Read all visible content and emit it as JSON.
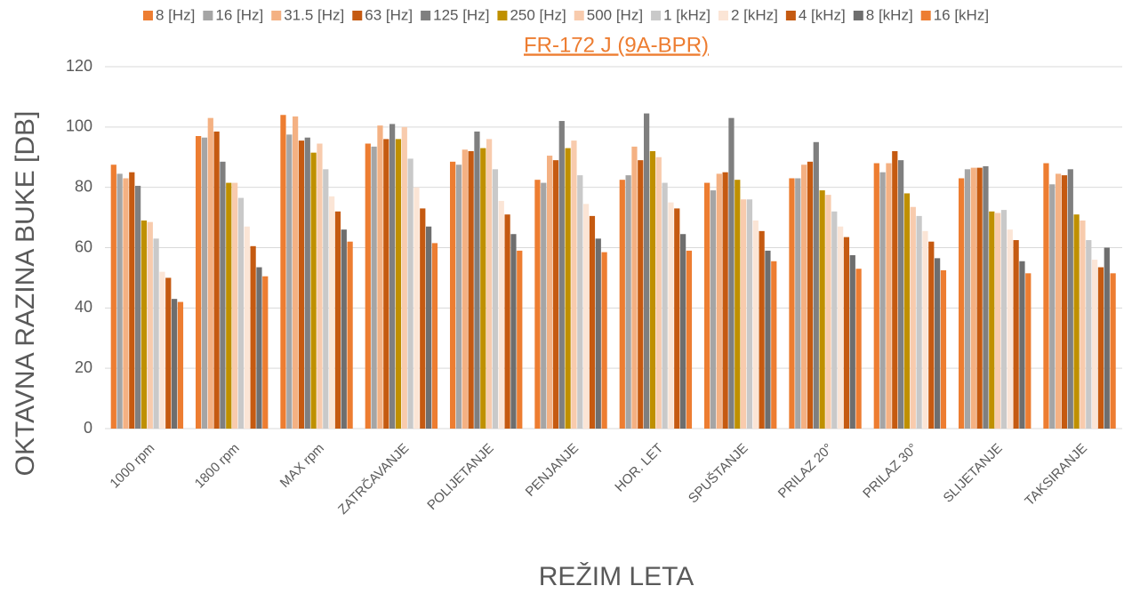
{
  "chart_data": {
    "type": "bar",
    "title": "FR-172 J (9A-BPR)",
    "x_label": "REŽIM LETA",
    "y_label": "OKTAVNA RAZINA BUKE [DB]",
    "categories": [
      "1000 rpm",
      "1800 rpm",
      "MAX rpm",
      "ZATRČAVANJE",
      "POLIJETANJE",
      "PENJANJE",
      "HOR. LET",
      "SPUŠTANJE",
      "PRILAZ 20°",
      "PRILAZ 30°",
      "SLIJETANJE",
      "TAKSIRANJE"
    ],
    "series": [
      {
        "name": "8 [Hz]",
        "color": "#ED7D31",
        "values": [
          87.5,
          97,
          104,
          94.5,
          88.5,
          82.5,
          82.5,
          81.5,
          83,
          88,
          83,
          88
        ]
      },
      {
        "name": "16 [Hz]",
        "color": "#A5A5A5",
        "values": [
          84.5,
          96.5,
          97.5,
          93.5,
          87.5,
          81.5,
          84,
          79,
          83,
          85,
          86,
          81
        ]
      },
      {
        "name": "31.5 [Hz]",
        "color": "#F4B183",
        "values": [
          83,
          103,
          103.5,
          100.5,
          92.5,
          90.5,
          93.5,
          84.5,
          87.5,
          88,
          86.5,
          84.5
        ]
      },
      {
        "name": "63 [Hz]",
        "color": "#C55A11",
        "values": [
          85,
          98.5,
          95.5,
          96,
          92,
          89,
          89,
          85,
          88.5,
          92,
          86.5,
          84
        ]
      },
      {
        "name": "125 [Hz]",
        "color": "#7F7F7F",
        "values": [
          80.5,
          88.5,
          96.5,
          101,
          98.5,
          102,
          104.5,
          103,
          95,
          89,
          87,
          86
        ]
      },
      {
        "name": "250 [Hz]",
        "color": "#BF9000",
        "values": [
          69,
          81.5,
          91.5,
          96,
          93,
          93,
          92,
          82.5,
          79,
          78,
          72,
          71
        ]
      },
      {
        "name": "500 [Hz]",
        "color": "#F8CBAD",
        "values": [
          68.5,
          81.5,
          94.5,
          100,
          96,
          95.5,
          90,
          76,
          77.5,
          73.5,
          71.5,
          69
        ]
      },
      {
        "name": "1 [kHz]",
        "color": "#C9C9C9",
        "values": [
          63,
          76.5,
          86,
          89.5,
          86,
          84,
          81.5,
          76,
          72,
          70.5,
          72.5,
          62.5
        ]
      },
      {
        "name": "2 [kHz]",
        "color": "#FBE5D6",
        "values": [
          52,
          67,
          77,
          80,
          75.5,
          74.5,
          75,
          69,
          67,
          65.5,
          66,
          56
        ]
      },
      {
        "name": "4 [kHz]",
        "color": "#C55A11",
        "values": [
          50,
          60.5,
          72,
          73,
          71,
          70.5,
          73,
          65.5,
          63.5,
          62,
          62.5,
          53.5
        ]
      },
      {
        "name": "8 [kHz]",
        "color": "#6E6E6E",
        "values": [
          43,
          53.5,
          66,
          67,
          64.5,
          63,
          64.5,
          59,
          57.5,
          56.5,
          55.5,
          60
        ]
      },
      {
        "name": "16 [kHz]",
        "color": "#ED7D31",
        "values": [
          42,
          50.5,
          62,
          61.5,
          59,
          58.5,
          59,
          55.5,
          53,
          52.5,
          51.5,
          51.5
        ]
      }
    ],
    "ylim": [
      0,
      120
    ],
    "yticks": [
      0,
      20,
      40,
      60,
      80,
      100,
      120
    ],
    "grid": true,
    "legend": "top"
  }
}
